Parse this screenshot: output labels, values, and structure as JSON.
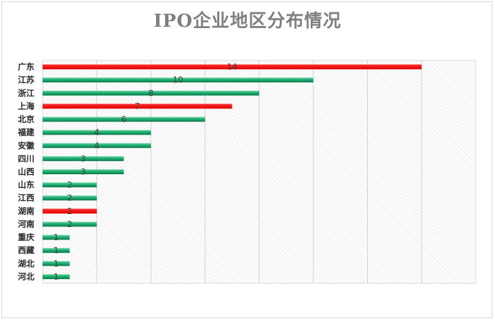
{
  "chart_data": {
    "type": "bar",
    "orientation": "horizontal",
    "title": "IPO企业地区分布情况",
    "categories": [
      "广东",
      "江苏",
      "浙江",
      "上海",
      "北京",
      "福建",
      "安徽",
      "四川",
      "山西",
      "山东",
      "江西",
      "湖南",
      "河南",
      "重庆",
      "西藏",
      "湖北",
      "河北"
    ],
    "values": [
      14,
      10,
      8,
      7,
      6,
      4,
      4,
      3,
      3,
      2,
      2,
      2,
      2,
      1,
      1,
      1,
      1
    ],
    "bar_colors": [
      "#ff0000",
      "#1aa86b",
      "#1aa86b",
      "#ff0000",
      "#1aa86b",
      "#1aa86b",
      "#1aa86b",
      "#1aa86b",
      "#1aa86b",
      "#1aa86b",
      "#1aa86b",
      "#ff0000",
      "#1aa86b",
      "#1aa86b",
      "#1aa86b",
      "#1aa86b",
      "#1aa86b"
    ],
    "xlim": [
      0,
      16
    ],
    "x_grid_step": 2,
    "grid": true,
    "data_labels": true,
    "legend": "none",
    "colors": {
      "highlight": "#ff0000",
      "default": "#1aa86b",
      "title": "#7f7f7f",
      "plot_background": "hatched light gray"
    }
  }
}
